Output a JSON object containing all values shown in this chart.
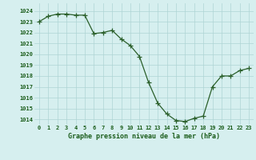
{
  "hours": [
    0,
    1,
    2,
    3,
    4,
    5,
    6,
    7,
    8,
    9,
    10,
    11,
    12,
    13,
    14,
    15,
    16,
    17,
    18,
    19,
    20,
    21,
    22,
    23
  ],
  "pressure": [
    1023.0,
    1023.5,
    1023.7,
    1023.7,
    1023.6,
    1023.6,
    1021.9,
    1022.0,
    1022.2,
    1021.4,
    1020.8,
    1019.8,
    1017.4,
    1015.5,
    1014.5,
    1013.9,
    1013.8,
    1014.1,
    1014.3,
    1017.0,
    1018.0,
    1018.0,
    1018.5,
    1018.7
  ],
  "line_color": "#2a5f2a",
  "marker_color": "#2a5f2a",
  "bg_color": "#d6efef",
  "grid_color": "#aed4d4",
  "xlabel": "Graphe pression niveau de la mer (hPa)",
  "xlabel_color": "#1a5c1a",
  "tick_color": "#1a5c1a",
  "ylim": [
    1013.5,
    1024.7
  ],
  "yticks": [
    1014,
    1015,
    1016,
    1017,
    1018,
    1019,
    1020,
    1021,
    1022,
    1023,
    1024
  ],
  "xlim": [
    -0.5,
    23.5
  ],
  "xticks": [
    0,
    1,
    2,
    3,
    4,
    5,
    6,
    7,
    8,
    9,
    10,
    11,
    12,
    13,
    14,
    15,
    16,
    17,
    18,
    19,
    20,
    21,
    22,
    23
  ],
  "tick_fontsize": 5,
  "xlabel_fontsize": 6,
  "linewidth": 0.9,
  "markersize": 2.0
}
